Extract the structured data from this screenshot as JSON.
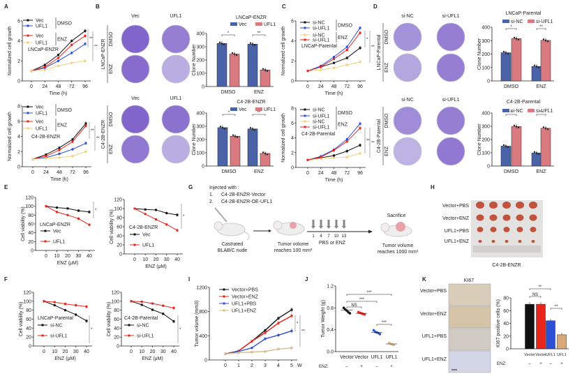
{
  "panels": [
    "A",
    "B",
    "C",
    "D",
    "E",
    "F",
    "G",
    "H",
    "I",
    "J",
    "K"
  ],
  "colony_images": {
    "B_top": {
      "cols": [
        "Vec",
        "UFL1"
      ],
      "rows": [
        "DMSO",
        "ENZ"
      ],
      "cell_line": "LNCaP-ENZR"
    },
    "B_bottom": {
      "cols": [
        "Vec",
        "UFL1"
      ],
      "rows": [
        "DMSO",
        "ENZ"
      ],
      "cell_line": "C4-2B-ENZR"
    },
    "D_top": {
      "cols": [
        "si-NC",
        "si-UFL1"
      ],
      "rows": [
        "DMSO",
        "ENZ"
      ],
      "cell_line": "LNCaP-Parental"
    },
    "D_bottom": {
      "cols": [
        "si-NC",
        "si-UFL1"
      ],
      "rows": [
        "DMSO",
        "ENZ"
      ],
      "cell_line": "C4-2B-Parental"
    }
  },
  "schematic": {
    "injected_title": "Injected with :",
    "items": [
      "1.",
      "C4-2B-ENZR-Vector",
      "2.",
      "C4-2B-ENZR-OE-UFL1"
    ],
    "step1": [
      "Castrated",
      "BLAB/C nude"
    ],
    "step2": [
      "Tumor volume",
      "reaches 100 mm³"
    ],
    "days": [
      "1",
      "4",
      "7",
      "10",
      "13"
    ],
    "treatment": "PBS or ENZ",
    "step3_title": "Sacrifice",
    "step3": [
      "Tumor volume",
      "reaches 1000 mm³"
    ]
  },
  "tumor_photo": {
    "rows": [
      "Vector+PBS",
      "Vector+ENZ",
      "UFL1+PBS",
      "UFL1+ENZ"
    ],
    "caption": "C4-2B-ENZR"
  },
  "ihc": {
    "title": "KI67",
    "rows": [
      "Vector+PBS",
      "Vector+ENZ",
      "UFL1+PBS",
      "UFL1+ENZ"
    ]
  },
  "chart_data": [
    {
      "panel": "A",
      "type": "line",
      "cell_line": "LNCaP-ENZR",
      "xlabel": "Time (h)",
      "ylabel": "Normalized cell growth",
      "x": [
        0,
        24,
        48,
        72,
        96
      ],
      "ylim": [
        0,
        6
      ],
      "yticks": [
        0,
        2,
        4,
        6
      ],
      "groups": [
        "DMSO",
        "ENZ"
      ],
      "significance": [
        "**",
        "**"
      ],
      "series": [
        {
          "name": "Vec",
          "group": "DMSO",
          "color": "#111111",
          "values": [
            1,
            1.6,
            2.6,
            4.0,
            5.0
          ]
        },
        {
          "name": "UFL1",
          "group": "DMSO",
          "color": "#2d4fd6",
          "values": [
            1,
            1.3,
            2.0,
            2.8,
            3.7
          ]
        },
        {
          "name": "Vec",
          "group": "ENZ",
          "color": "#e8251c",
          "values": [
            1,
            1.4,
            2.3,
            3.6,
            4.5
          ]
        },
        {
          "name": "UFL1",
          "group": "ENZ",
          "color": "#f3d27f",
          "values": [
            1,
            1.1,
            1.5,
            1.8,
            2.0
          ]
        }
      ]
    },
    {
      "panel": "A",
      "type": "line",
      "cell_line": "C4-2B-ENZR",
      "xlabel": "Time (h)",
      "ylabel": "Normalized cell growth",
      "x": [
        0,
        24,
        48,
        72,
        96
      ],
      "ylim": [
        0,
        8
      ],
      "yticks": [
        0,
        2,
        4,
        6,
        8
      ],
      "groups": [
        "DMSO",
        "ENZ"
      ],
      "significance": [
        "**",
        "**"
      ],
      "series": [
        {
          "name": "Vec",
          "group": "DMSO",
          "color": "#111111",
          "values": [
            1,
            1.6,
            2.5,
            3.6,
            5.7
          ]
        },
        {
          "name": "UFL1",
          "group": "DMSO",
          "color": "#2d4fd6",
          "values": [
            1,
            1.2,
            1.7,
            2.3,
            3.1
          ]
        },
        {
          "name": "Vec",
          "group": "ENZ",
          "color": "#e8251c",
          "values": [
            1,
            1.4,
            2.2,
            3.3,
            5.4
          ]
        },
        {
          "name": "UFL1",
          "group": "ENZ",
          "color": "#f3d27f",
          "values": [
            1,
            1.1,
            1.2,
            1.4,
            2.0
          ]
        }
      ]
    },
    {
      "panel": "B",
      "type": "bar",
      "title": "LNCaP-ENZR",
      "ylabel": "Clone Number",
      "categories": [
        "DMSO",
        "ENZ"
      ],
      "ylim": [
        0,
        400
      ],
      "yticks": [
        0,
        100,
        200,
        300,
        400
      ],
      "significance": [
        "*",
        "**"
      ],
      "series": [
        {
          "name": "Vec",
          "color": "#4a62a8",
          "values": [
            325,
            320
          ]
        },
        {
          "name": "UFL1",
          "color": "#d97a80",
          "values": [
            245,
            125
          ]
        }
      ]
    },
    {
      "panel": "B",
      "type": "bar",
      "title": "C4-2B-ENZR",
      "ylabel": "Clone Number",
      "categories": [
        "DMSO",
        "ENZ"
      ],
      "ylim": [
        0,
        400
      ],
      "yticks": [
        0,
        100,
        200,
        300,
        400
      ],
      "significance": [
        "*",
        "**"
      ],
      "series": [
        {
          "name": "Vec",
          "color": "#4a62a8",
          "values": [
            290,
            280
          ]
        },
        {
          "name": "UFL1",
          "color": "#d97a80",
          "values": [
            225,
            95
          ]
        }
      ]
    },
    {
      "panel": "C",
      "type": "line",
      "cell_line": "LNCaP-Parental",
      "xlabel": "Time (h)",
      "ylabel": "Normalized cell growth",
      "x": [
        0,
        24,
        48,
        72,
        96
      ],
      "ylim": [
        0,
        6
      ],
      "yticks": [
        0,
        2,
        4,
        6
      ],
      "groups": [
        "DMSO",
        "ENZ"
      ],
      "significance": [
        "*",
        "**"
      ],
      "series": [
        {
          "name": "si-NC",
          "group": "DMSO",
          "color": "#111111",
          "values": [
            1,
            1.4,
            1.8,
            2.3,
            3.3
          ]
        },
        {
          "name": "si-UFL1",
          "group": "DMSO",
          "color": "#2d4fd6",
          "values": [
            1,
            1.5,
            2.4,
            3.4,
            5.3
          ]
        },
        {
          "name": "si-NC",
          "group": "ENZ",
          "color": "#f3d27f",
          "values": [
            1,
            1.1,
            1.3,
            1.6,
            1.9
          ]
        },
        {
          "name": "si-UFL1",
          "group": "ENZ",
          "color": "#e8251c",
          "values": [
            1,
            1.4,
            2.2,
            3.1,
            4.8
          ]
        }
      ]
    },
    {
      "panel": "C",
      "type": "line",
      "cell_line": "C4-2B-Parental",
      "xlabel": "Time (h)",
      "ylabel": "Normalized cell growth",
      "x": [
        0,
        24,
        48,
        72,
        96
      ],
      "ylim": [
        0,
        8
      ],
      "yticks": [
        0,
        2,
        4,
        6,
        8
      ],
      "groups": [
        "DMSO",
        "ENZ"
      ],
      "significance": [
        "**",
        "**"
      ],
      "series": [
        {
          "name": "si-NC",
          "group": "DMSO",
          "color": "#111111",
          "values": [
            1,
            1.3,
            1.6,
            2.2,
            3.0
          ]
        },
        {
          "name": "si-UFL1",
          "group": "DMSO",
          "color": "#2d4fd6",
          "values": [
            1,
            1.5,
            2.4,
            3.8,
            5.9
          ]
        },
        {
          "name": "si-NC",
          "group": "ENZ",
          "color": "#f3d27f",
          "values": [
            1,
            1.2,
            1.3,
            1.4,
            1.9
          ]
        },
        {
          "name": "si-UFL1",
          "group": "ENZ",
          "color": "#e8251c",
          "values": [
            1,
            1.4,
            2.3,
            3.5,
            5.3
          ]
        }
      ]
    },
    {
      "panel": "D",
      "type": "bar",
      "title": "LNCaP-Parental",
      "ylabel": "Clone Number",
      "categories": [
        "DMSO",
        "ENZ"
      ],
      "ylim": [
        0,
        400
      ],
      "yticks": [
        0,
        100,
        200,
        300,
        400
      ],
      "significance": [
        "*",
        "**"
      ],
      "series": [
        {
          "name": "si-NC",
          "color": "#4a62a8",
          "values": [
            210,
            108
          ]
        },
        {
          "name": "si-UFL1",
          "color": "#d97a80",
          "values": [
            315,
            302
          ]
        }
      ]
    },
    {
      "panel": "D",
      "type": "bar",
      "title": "C4-2B-Parental",
      "ylabel": "Clone Number",
      "categories": [
        "DMSO",
        "ENZ"
      ],
      "ylim": [
        0,
        400
      ],
      "yticks": [
        0,
        100,
        200,
        300,
        400
      ],
      "significance": [
        "*",
        "**"
      ],
      "series": [
        {
          "name": "si-NC",
          "color": "#4a62a8",
          "values": [
            150,
            98
          ]
        },
        {
          "name": "si-UFL1",
          "color": "#d97a80",
          "values": [
            298,
            285
          ]
        }
      ]
    },
    {
      "panel": "E",
      "type": "line",
      "cell_line": "LNCaP-ENZR",
      "xlabel": "ENZ (μM)",
      "ylabel": "Cell viability (%)",
      "x": [
        0,
        10,
        20,
        30,
        40
      ],
      "ylim": [
        0,
        120
      ],
      "yticks": [
        0,
        20,
        40,
        60,
        80,
        100,
        120
      ],
      "significance": [
        "*"
      ],
      "series": [
        {
          "name": "Vec",
          "color": "#111111",
          "values": [
            100,
            97,
            95,
            90,
            87
          ]
        },
        {
          "name": "UFL1",
          "color": "#e8251c",
          "values": [
            100,
            87,
            80,
            72,
            58
          ]
        }
      ]
    },
    {
      "panel": "E",
      "type": "line",
      "cell_line": "C4-2B-ENZR",
      "xlabel": "ENZ (μM)",
      "ylabel": "Cell viability (%)",
      "x": [
        0,
        10,
        20,
        30,
        40
      ],
      "ylim": [
        0,
        120
      ],
      "yticks": [
        0,
        20,
        40,
        60,
        80,
        100,
        120
      ],
      "significance": [
        "*"
      ],
      "series": [
        {
          "name": "Vec",
          "color": "#111111",
          "values": [
            100,
            98,
            97,
            90,
            86
          ]
        },
        {
          "name": "UFL1",
          "color": "#e8251c",
          "values": [
            100,
            88,
            76,
            65,
            52
          ]
        }
      ]
    },
    {
      "panel": "F",
      "type": "line",
      "cell_line": "LNCaP-Parental",
      "xlabel": "ENZ (μM)",
      "ylabel": "Cell viability (%)",
      "x": [
        0,
        10,
        20,
        30,
        40
      ],
      "ylim": [
        0,
        120
      ],
      "yticks": [
        0,
        20,
        40,
        60,
        80,
        100,
        120
      ],
      "significance": [
        "*"
      ],
      "series": [
        {
          "name": "si-NC",
          "color": "#111111",
          "values": [
            100,
            91,
            80,
            70,
            56
          ]
        },
        {
          "name": "si-UFL1",
          "color": "#e8251c",
          "values": [
            100,
            98,
            94,
            91,
            88
          ]
        }
      ]
    },
    {
      "panel": "F",
      "type": "line",
      "cell_line": "C4-2B-Parental",
      "xlabel": "ENZ (μM)",
      "ylabel": "Cell viability (%)",
      "x": [
        0,
        10,
        20,
        30,
        40
      ],
      "ylim": [
        0,
        120
      ],
      "yticks": [
        0,
        20,
        40,
        60,
        80,
        100,
        120
      ],
      "significance": [
        "*"
      ],
      "series": [
        {
          "name": "si-NC",
          "color": "#111111",
          "values": [
            100,
            92,
            81,
            72,
            55
          ]
        },
        {
          "name": "si-UFL1",
          "color": "#e8251c",
          "values": [
            100,
            99,
            95,
            90,
            85
          ]
        }
      ]
    },
    {
      "panel": "I",
      "type": "line",
      "xlabel": "W",
      "ylabel": "Tumor volume (mm3)",
      "x": [
        0,
        1,
        2,
        3,
        4,
        5
      ],
      "ylim": [
        0,
        1200
      ],
      "yticks": [
        0,
        400,
        800,
        1200
      ],
      "significance": [
        "*",
        "**"
      ],
      "series": [
        {
          "name": "Vector+PBS",
          "color": "#111111",
          "values": [
            100,
            150,
            310,
            490,
            690,
            830
          ]
        },
        {
          "name": "Vector+ENZ",
          "color": "#e8251c",
          "values": [
            100,
            150,
            310,
            450,
            610,
            730
          ]
        },
        {
          "name": "UFL1+PBS",
          "color": "#2d4fd6",
          "values": [
            100,
            140,
            200,
            350,
            410,
            480
          ]
        },
        {
          "name": "UFL1+ENZ",
          "color": "#d9b98a",
          "values": [
            100,
            120,
            130,
            140,
            180,
            200
          ]
        }
      ]
    },
    {
      "panel": "J",
      "type": "scatter",
      "ylabel": "Tumor Weight (g)",
      "categories": [
        "Vector",
        "Vector",
        "UFL1",
        "UFL1"
      ],
      "enz_label": "ENZ:",
      "enz": [
        "–",
        "+",
        "–",
        "+"
      ],
      "ylim": [
        0,
        1.2
      ],
      "yticks": [
        0.0,
        0.4,
        0.8,
        1.2
      ],
      "colors": [
        "#111111",
        "#e8251c",
        "#2d4fd6",
        "#d9b98a"
      ],
      "points": [
        [
          0.8,
          0.77,
          0.75,
          0.72,
          0.7
        ],
        [
          0.72,
          0.71,
          0.7,
          0.69,
          0.68
        ],
        [
          0.39,
          0.36,
          0.35,
          0.34,
          0.32
        ],
        [
          0.16,
          0.14,
          0.13,
          0.12
        ]
      ],
      "means": [
        0.76,
        0.7,
        0.35,
        0.14
      ],
      "comparisons": [
        {
          "pair": [
            0,
            1
          ],
          "label": "NS"
        },
        {
          "pair": [
            0,
            2
          ],
          "label": "***"
        },
        {
          "pair": [
            0,
            3
          ],
          "label": "***"
        },
        {
          "pair": [
            2,
            3
          ],
          "label": "***"
        }
      ]
    },
    {
      "panel": "K",
      "type": "bar",
      "ylabel": "KI67 positive cells (%)",
      "categories": [
        "Vector",
        "Vector",
        "UFL1",
        "UFL1"
      ],
      "enz_label": "ENZ:",
      "enz": [
        "–",
        "+",
        "–",
        "+"
      ],
      "ylim": [
        0,
        80
      ],
      "yticks": [
        0,
        20,
        40,
        60,
        80
      ],
      "colors": [
        "#111111",
        "#e8251c",
        "#2d4fd6",
        "#d9a878"
      ],
      "values": [
        70,
        70,
        44,
        22
      ],
      "comparisons": [
        {
          "pair": [
            0,
            1
          ],
          "label": "NS"
        },
        {
          "pair": [
            0,
            2
          ],
          "label": "**"
        },
        {
          "pair": [
            2,
            3
          ],
          "label": "**"
        }
      ]
    }
  ]
}
